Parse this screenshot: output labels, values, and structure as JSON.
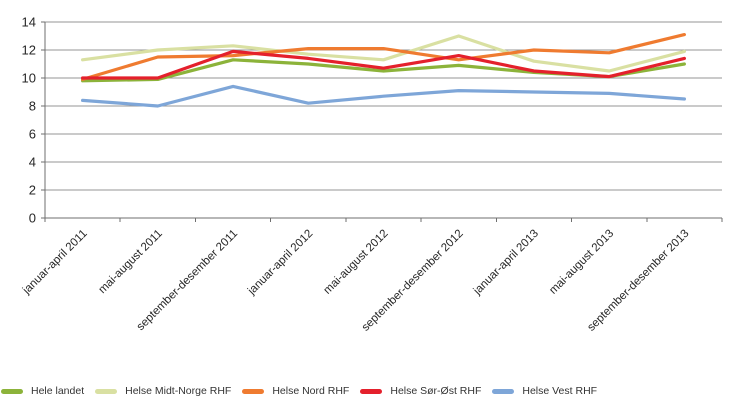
{
  "colors": {
    "background": "#FFFFFF",
    "grid": "#949494",
    "axis": "#6F6F6F",
    "text": "#262626",
    "legend_text": "#333333"
  },
  "chart_data": {
    "type": "line",
    "title": "",
    "xlabel": "",
    "ylabel": "",
    "ylim": [
      0,
      14
    ],
    "yticks": [
      0,
      2,
      4,
      6,
      8,
      10,
      12,
      14
    ],
    "grid": true,
    "legend_position": "bottom",
    "categories": [
      "januar-april 2011",
      "mai-august 2011",
      "september-desember 2011",
      "januar-april 2012",
      "mai-august 2012",
      "september-desember 2012",
      "januar-april 2013",
      "mai-august 2013",
      "september-desember 2013"
    ],
    "series": [
      {
        "name": "Hele landet",
        "color": "#8CB33A",
        "values": [
          9.8,
          9.9,
          11.3,
          11.0,
          10.5,
          10.9,
          10.4,
          10.1,
          11.0
        ]
      },
      {
        "name": "Helse Midt-Norge RHF",
        "color": "#D9E0A2",
        "values": [
          11.3,
          12.0,
          12.3,
          11.7,
          11.3,
          13.0,
          11.2,
          10.5,
          11.9
        ]
      },
      {
        "name": "Helse Nord RHF",
        "color": "#EF7B30",
        "values": [
          9.9,
          11.5,
          11.6,
          12.1,
          12.1,
          11.3,
          12.0,
          11.8,
          13.1
        ]
      },
      {
        "name": "Helse Sør-Øst RHF",
        "color": "#E4202C",
        "values": [
          10.0,
          10.0,
          11.9,
          11.4,
          10.7,
          11.6,
          10.5,
          10.1,
          11.4
        ]
      },
      {
        "name": "Helse Vest RHF",
        "color": "#7EA6D8",
        "values": [
          8.4,
          8.0,
          9.4,
          8.2,
          8.7,
          9.1,
          9.0,
          8.9,
          8.5
        ]
      }
    ]
  }
}
